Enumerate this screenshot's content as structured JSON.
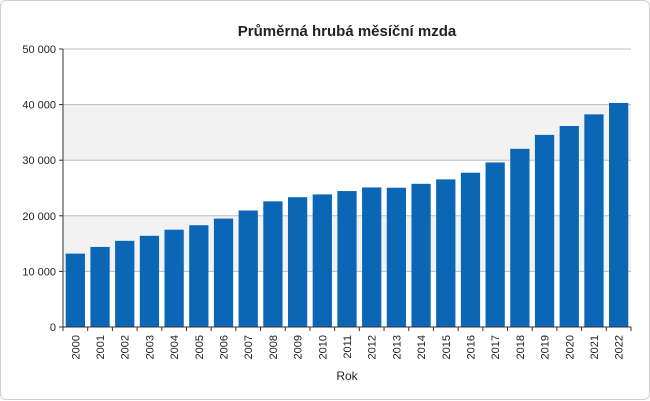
{
  "chart_data": {
    "type": "bar",
    "title": "Průměrná hrubá měsíční mzda",
    "xlabel": "Rok",
    "ylabel": "",
    "ylim": [
      0,
      50000
    ],
    "y_ticks": [
      0,
      10000,
      20000,
      30000,
      40000,
      50000
    ],
    "y_tick_labels": [
      "0",
      "10 000",
      "20 000",
      "30 000",
      "40 000",
      "50 000"
    ],
    "categories": [
      "2000",
      "2001",
      "2002",
      "2003",
      "2004",
      "2005",
      "2006",
      "2007",
      "2008",
      "2009",
      "2010",
      "2011",
      "2012",
      "2013",
      "2014",
      "2015",
      "2016",
      "2017",
      "2018",
      "2019",
      "2020",
      "2021",
      "2022"
    ],
    "values": [
      13200,
      14400,
      15500,
      16400,
      17500,
      18300,
      19500,
      20950,
      22600,
      23350,
      23850,
      24450,
      25100,
      25050,
      25750,
      26550,
      27750,
      29600,
      32050,
      34550,
      36150,
      38250,
      40300
    ],
    "grid": true,
    "colors": {
      "bar": "#0b66b5",
      "band": "#f2f2f2",
      "grid": "#bdbdbd",
      "axis": "#333333"
    }
  }
}
